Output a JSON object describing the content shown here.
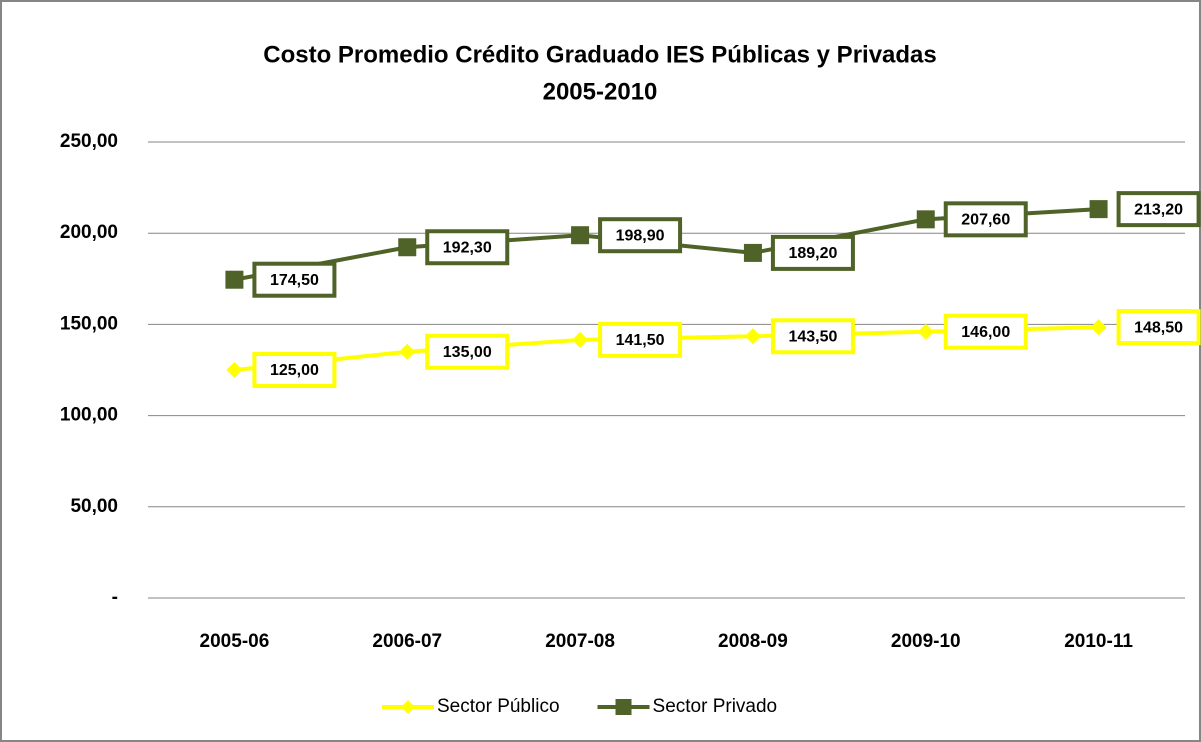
{
  "chart_data": {
    "type": "line",
    "title": "Costo Promedio Crédito Graduado  IES Públicas y Privadas",
    "subtitle": "2005-2010",
    "categories": [
      "2005-06",
      "2006-07",
      "2007-08",
      "2008-09",
      "2009-10",
      "2010-11"
    ],
    "series": [
      {
        "name": "Sector Público",
        "color": "#ffff00",
        "marker": "diamond",
        "values": [
          125,
          135,
          141.5,
          143.5,
          146,
          148.5
        ],
        "value_labels": [
          "125,00",
          "135,00",
          "141,50",
          "143,50",
          "146,00",
          "148,50"
        ]
      },
      {
        "name": "Sector Privado",
        "color": "#4f6228",
        "marker": "square",
        "values": [
          174.5,
          192.3,
          198.9,
          189.2,
          207.6,
          213.2
        ],
        "value_labels": [
          "174,50",
          "192,30",
          "198,90",
          "189,20",
          "207,60",
          "213,20"
        ]
      }
    ],
    "ylim": [
      0,
      250
    ],
    "yticks": [
      {
        "value": 0,
        "label": "-"
      },
      {
        "value": 50,
        "label": "50,00"
      },
      {
        "value": 100,
        "label": "100,00"
      },
      {
        "value": 150,
        "label": "150,00"
      },
      {
        "value": 200,
        "label": "200,00"
      },
      {
        "value": 250,
        "label": "250,00"
      }
    ],
    "grid": true,
    "legend": "bottom"
  }
}
